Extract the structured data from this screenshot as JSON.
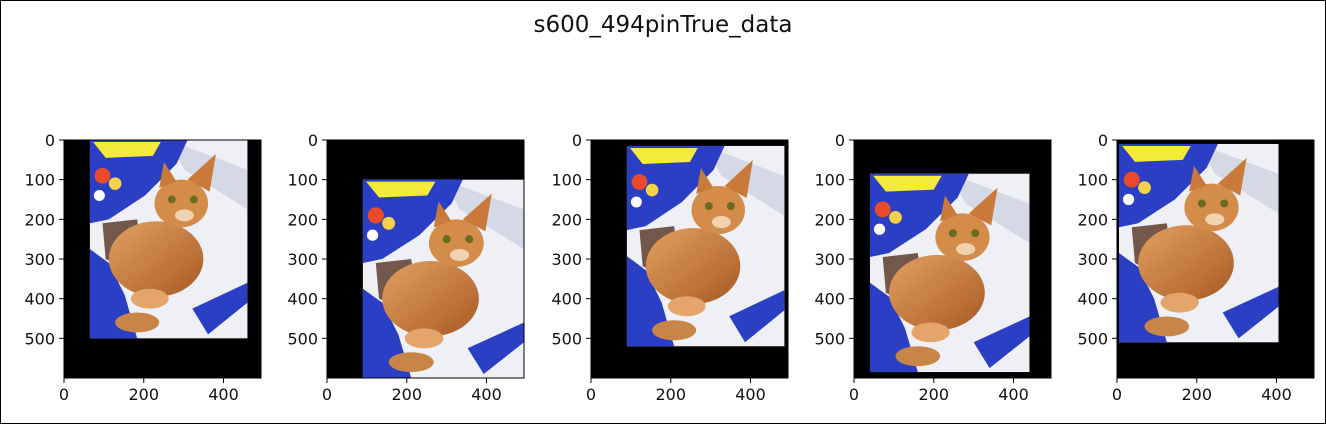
{
  "figure": {
    "title": "s600_494pinTrue_data"
  },
  "colors": {
    "padding": "#000000",
    "axis": "#000000",
    "tick_text": "#111111",
    "bag_blue": "#2b3fc4",
    "bag_yellow": "#f4ea3a",
    "cloth": "#eef0f6",
    "cat_orange": "#c97a3a",
    "cat_shadow": "#4a2410"
  },
  "chart_data": {
    "type": "image-grid",
    "description_source": "5 subplots, each an image of a cat padded into a 494 x 600 black canvas",
    "image_size": {
      "width": 494,
      "height": 600
    },
    "xlim": [
      0,
      494
    ],
    "ylim": [
      600,
      0
    ],
    "xticks": [
      0,
      200,
      400
    ],
    "yticks": [
      0,
      100,
      200,
      300,
      400,
      500
    ],
    "panels": [
      {
        "photo_extent": {
          "x0": 65,
          "x1": 460,
          "y0": 0,
          "y1": 500
        }
      },
      {
        "photo_extent": {
          "x0": 90,
          "x1": 494,
          "y0": 100,
          "y1": 600
        }
      },
      {
        "photo_extent": {
          "x0": 90,
          "x1": 485,
          "y0": 15,
          "y1": 520
        }
      },
      {
        "photo_extent": {
          "x0": 40,
          "x1": 440,
          "y0": 85,
          "y1": 585
        }
      },
      {
        "photo_extent": {
          "x0": 5,
          "x1": 405,
          "y0": 10,
          "y1": 510
        }
      }
    ]
  }
}
